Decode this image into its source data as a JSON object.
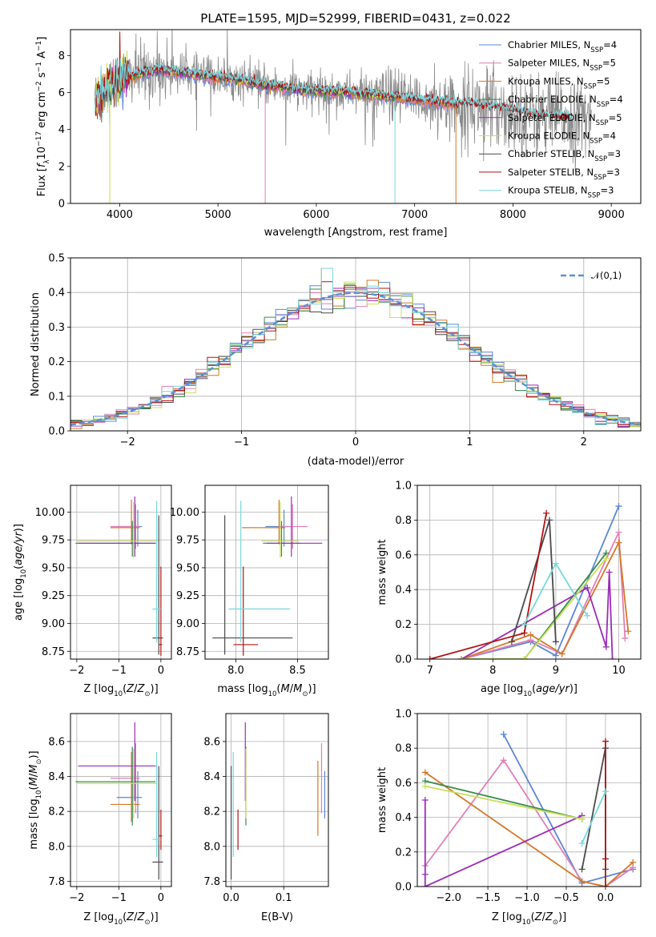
{
  "colors": {
    "Chabrier MILES": "#5b86d6",
    "Salpeter MILES": "#e17fb7",
    "Kroupa MILES": "#d4782a",
    "Chabrier ELODIE": "#3a8c4a",
    "Salpeter ELODIE": "#9a2db8",
    "Kroupa ELODIE": "#c9df5a",
    "Chabrier STELIB": "#4a4a4a",
    "Salpeter STELIB": "#b01313",
    "Kroupa STELIB": "#79d7dc",
    "data": "#8a8a8a",
    "gauss": "#5b8fd6"
  },
  "chart_data": [
    {
      "id": "spectrum",
      "type": "line",
      "title": "PLATE=1595, MJD=52999, FIBERID=0431, z=0.022",
      "xlabel": "wavelength [Angstrom, rest frame]",
      "ylabel": "Flux [f_λ 10^-17 erg cm^-2 s^-1 A^-1]",
      "xlim": [
        3500,
        9300
      ],
      "ylim": [
        0,
        9.4
      ],
      "xticks": [
        4000,
        5000,
        6000,
        7000,
        8000,
        9000
      ],
      "yticks": [
        0,
        2,
        4,
        6,
        8
      ],
      "legend_position": "upper right",
      "legend": [
        {
          "label": "Chabrier MILES, N",
          "sub": "SSP",
          "suffix": "=4",
          "series": "Chabrier MILES"
        },
        {
          "label": "Salpeter MILES, N",
          "sub": "SSP",
          "suffix": "=5",
          "series": "Salpeter MILES"
        },
        {
          "label": "Kroupa MILES, N",
          "sub": "SSP",
          "suffix": "=5",
          "series": "Kroupa MILES"
        },
        {
          "label": "Chabrier ELODIE, N",
          "sub": "SSP",
          "suffix": "=4",
          "series": "Chabrier ELODIE"
        },
        {
          "label": "Salpeter ELODIE, N",
          "sub": "SSP",
          "suffix": "=5",
          "series": "Salpeter ELODIE"
        },
        {
          "label": "Kroupa ELODIE, N",
          "sub": "SSP",
          "suffix": "=4",
          "series": "Kroupa ELODIE"
        },
        {
          "label": "Chabrier STELIB, N",
          "sub": "SSP",
          "suffix": "=3",
          "series": "Chabrier STELIB"
        },
        {
          "label": "Salpeter STELIB, N",
          "sub": "SSP",
          "suffix": "=3",
          "series": "Salpeter STELIB"
        },
        {
          "label": "Kroupa STELIB, N",
          "sub": "SSP",
          "suffix": "=3",
          "series": "Kroupa STELIB"
        }
      ],
      "continuum": [
        [
          3750,
          5.6
        ],
        [
          3900,
          6.3
        ],
        [
          4000,
          6.8
        ],
        [
          4200,
          7.0
        ],
        [
          4400,
          7.2
        ],
        [
          4600,
          7.1
        ],
        [
          4900,
          6.9
        ],
        [
          5200,
          6.7
        ],
        [
          5500,
          6.4
        ],
        [
          5900,
          6.1
        ],
        [
          6300,
          6.0
        ],
        [
          6700,
          5.8
        ],
        [
          7000,
          5.6
        ],
        [
          7400,
          5.4
        ],
        [
          7800,
          5.2
        ],
        [
          8200,
          4.8
        ],
        [
          8600,
          4.6
        ],
        [
          8800,
          4.5
        ]
      ],
      "model_range": {
        "MILES": [
          3750,
          7420
        ],
        "ELODIE": [
          3750,
          6800
        ],
        "STELIB": [
          3750,
          8600
        ]
      },
      "model_dropouts": [
        {
          "series": "Kroupa ELODIE",
          "x": 3900
        },
        {
          "series": "Salpeter MILES",
          "x": 5480
        },
        {
          "series": "Kroupa STELIB",
          "x": 6800
        },
        {
          "series": "Kroupa MILES",
          "x": 7420
        }
      ],
      "data_range": [
        3750,
        8800
      ]
    },
    {
      "id": "residuals",
      "type": "histogram",
      "xlabel": "(data-model)/error",
      "ylabel": "Normed distribution",
      "xlim": [
        -2.5,
        2.5
      ],
      "ylim": [
        0,
        0.5
      ],
      "xticks": [
        -2,
        -1,
        0,
        1,
        2
      ],
      "yticks": [
        0.0,
        0.1,
        0.2,
        0.3,
        0.4,
        0.5
      ],
      "bin_width": 0.1,
      "legend": "𝒩(0,1)",
      "legend_position": "upper right",
      "series": [
        "Chabrier MILES",
        "Salpeter MILES",
        "Kroupa MILES",
        "Chabrier ELODIE",
        "Salpeter ELODIE",
        "Kroupa ELODIE",
        "Chabrier STELIB",
        "Salpeter STELIB",
        "Kroupa STELIB"
      ],
      "peak_bin": {
        "x": -0.25,
        "value": 0.47
      }
    },
    {
      "id": "age_vs_Z",
      "type": "errorbar",
      "xlabel": "Z [log10(Z/Z⊙)]",
      "ylabel": "age [log10(age/yr)]",
      "xlim": [
        -2.15,
        0.25
      ],
      "ylim": [
        8.68,
        10.24
      ],
      "xticks": [
        -2,
        -1,
        0
      ],
      "yticks": [
        8.75,
        9.0,
        9.25,
        9.5,
        9.75,
        10.0
      ],
      "points": [
        {
          "series": "Chabrier MILES",
          "x": -0.55,
          "xerr": [
            0.5,
            0.1
          ],
          "y": 9.87,
          "yerr": [
            0.18,
            0.15
          ]
        },
        {
          "series": "Salpeter MILES",
          "x": -0.6,
          "xerr": [
            0.6,
            0.1
          ],
          "y": 9.87,
          "yerr": [
            0.2,
            0.2
          ]
        },
        {
          "series": "Kroupa MILES",
          "x": -0.7,
          "xerr": [
            0.5,
            0.2
          ],
          "y": 9.86,
          "yerr": [
            0.15,
            0.25
          ]
        },
        {
          "series": "Chabrier ELODIE",
          "x": -0.68,
          "xerr": [
            1.35,
            0.55
          ],
          "y": 9.72,
          "yerr": [
            0.12,
            0.2
          ]
        },
        {
          "series": "Salpeter ELODIE",
          "x": -0.62,
          "xerr": [
            1.35,
            0.5
          ],
          "y": 9.72,
          "yerr": [
            0.12,
            0.42
          ]
        },
        {
          "series": "Kroupa ELODIE",
          "x": -0.65,
          "xerr": [
            1.35,
            0.55
          ],
          "y": 9.74,
          "yerr": [
            0.15,
            0.35
          ]
        },
        {
          "series": "Chabrier STELIB",
          "x": -0.05,
          "xerr": [
            0.15,
            0.1
          ],
          "y": 8.87,
          "yerr": [
            0.15,
            1.1
          ]
        },
        {
          "series": "Salpeter STELIB",
          "x": 0.0,
          "xerr": [
            0.05,
            0.03
          ],
          "y": 8.81,
          "yerr": [
            0.1,
            0.7
          ]
        },
        {
          "series": "Kroupa STELIB",
          "x": -0.1,
          "xerr": [
            0.1,
            0.1
          ],
          "y": 9.13,
          "yerr": [
            0.3,
            0.97
          ]
        }
      ]
    },
    {
      "id": "age_vs_mass",
      "type": "errorbar",
      "xlabel": "mass [log10(M/M⊙)]",
      "ylabel": "",
      "xlim": [
        7.75,
        8.75
      ],
      "ylim": [
        8.68,
        10.24
      ],
      "xticks": [
        8.0,
        8.5
      ],
      "yticks": [
        8.75,
        9.0,
        9.25,
        9.5,
        9.75,
        10.0
      ],
      "points": [
        {
          "series": "Chabrier MILES",
          "x": 8.39,
          "xerr": [
            0.15,
            0.05
          ],
          "y": 9.87,
          "yerr": [
            0.18,
            0.15
          ]
        },
        {
          "series": "Salpeter MILES",
          "x": 8.46,
          "xerr": [
            0.1,
            0.12
          ],
          "y": 9.87,
          "yerr": [
            0.2,
            0.2
          ]
        },
        {
          "series": "Kroupa MILES",
          "x": 8.35,
          "xerr": [
            0.3,
            0.05
          ],
          "y": 9.86,
          "yerr": [
            0.15,
            0.25
          ]
        },
        {
          "series": "Chabrier ELODIE",
          "x": 8.37,
          "xerr": [
            0.15,
            0.15
          ],
          "y": 9.72,
          "yerr": [
            0.12,
            0.2
          ]
        },
        {
          "series": "Salpeter ELODIE",
          "x": 8.45,
          "xerr": [
            0.2,
            0.25
          ],
          "y": 9.72,
          "yerr": [
            0.12,
            0.42
          ]
        },
        {
          "series": "Kroupa ELODIE",
          "x": 8.36,
          "xerr": [
            0.15,
            0.15
          ],
          "y": 9.74,
          "yerr": [
            0.15,
            0.35
          ]
        },
        {
          "series": "Chabrier STELIB",
          "x": 7.91,
          "xerr": [
            0.1,
            0.55
          ],
          "y": 8.87,
          "yerr": [
            0.15,
            1.1
          ]
        },
        {
          "series": "Salpeter STELIB",
          "x": 8.06,
          "xerr": [
            0.08,
            0.12
          ],
          "y": 8.81,
          "yerr": [
            0.1,
            0.7
          ]
        },
        {
          "series": "Kroupa STELIB",
          "x": 8.04,
          "xerr": [
            0.1,
            0.4
          ],
          "y": 9.13,
          "yerr": [
            0.3,
            0.97
          ]
        }
      ]
    },
    {
      "id": "weight_vs_age",
      "type": "line",
      "xlabel": "age [log10(age/yr)]",
      "ylabel": "mass weight",
      "xlim": [
        6.8,
        10.35
      ],
      "ylim": [
        0,
        1
      ],
      "xticks": [
        7,
        8,
        9,
        10
      ],
      "yticks": [
        0.0,
        0.2,
        0.4,
        0.6,
        0.8,
        1.0
      ],
      "series": [
        {
          "name": "Chabrier MILES",
          "x": [
            7.5,
            8.6,
            9.0,
            10.0
          ],
          "y": [
            0.0,
            0.1,
            0.02,
            0.88
          ]
        },
        {
          "name": "Salpeter MILES",
          "x": [
            7.5,
            8.6,
            9.1,
            10.0,
            10.1
          ],
          "y": [
            0.0,
            0.11,
            0.03,
            0.73,
            0.12
          ]
        },
        {
          "name": "Kroupa MILES",
          "x": [
            7.5,
            8.6,
            9.1,
            10.0,
            10.15
          ],
          "y": [
            0.0,
            0.14,
            0.03,
            0.67,
            0.16
          ]
        },
        {
          "name": "Chabrier ELODIE",
          "x": [
            7.5,
            8.5,
            9.8
          ],
          "y": [
            0.0,
            0.0,
            0.61
          ]
        },
        {
          "name": "Salpeter ELODIE",
          "x": [
            7.5,
            9.5,
            9.8,
            9.85,
            9.9
          ],
          "y": [
            0.0,
            0.41,
            0.07,
            0.5,
            0.0
          ]
        },
        {
          "name": "Kroupa ELODIE",
          "x": [
            7.5,
            8.5,
            9.8
          ],
          "y": [
            0.0,
            0.0,
            0.58
          ]
        },
        {
          "name": "Chabrier STELIB",
          "x": [
            8.3,
            8.9,
            9.0
          ],
          "y": [
            0.1,
            0.8,
            0.1
          ]
        },
        {
          "name": "Salpeter STELIB",
          "x": [
            7.0,
            8.5,
            8.85
          ],
          "y": [
            0.0,
            0.15,
            0.84
          ]
        },
        {
          "name": "Kroupa STELIB",
          "x": [
            8.5,
            9.0,
            9.5
          ],
          "y": [
            0.2,
            0.55,
            0.25
          ]
        }
      ]
    },
    {
      "id": "mass_vs_Z",
      "type": "errorbar",
      "xlabel": "Z [log10(Z/Z⊙)]",
      "ylabel": "mass [log10(M/M⊙)]",
      "xlim": [
        -2.15,
        0.25
      ],
      "ylim": [
        7.77,
        8.76
      ],
      "xticks": [
        -2,
        -1,
        0
      ],
      "yticks": [
        7.8,
        8.0,
        8.2,
        8.4,
        8.6
      ],
      "points": [
        {
          "series": "Chabrier MILES",
          "x": -0.55,
          "xerr": [
            0.5,
            0.1
          ],
          "y": 8.28,
          "yerr": [
            0.12,
            0.15
          ]
        },
        {
          "series": "Salpeter MILES",
          "x": -0.6,
          "xerr": [
            0.6,
            0.1
          ],
          "y": 8.39,
          "yerr": [
            0.2,
            0.2
          ]
        },
        {
          "series": "Kroupa MILES",
          "x": -0.7,
          "xerr": [
            0.5,
            0.2
          ],
          "y": 8.24,
          "yerr": [
            0.1,
            0.3
          ]
        },
        {
          "series": "Chabrier ELODIE",
          "x": -0.68,
          "xerr": [
            1.35,
            0.55
          ],
          "y": 8.37,
          "yerr": [
            0.25,
            0.2
          ]
        },
        {
          "series": "Salpeter ELODIE",
          "x": -0.62,
          "xerr": [
            1.35,
            0.5
          ],
          "y": 8.46,
          "yerr": [
            0.2,
            0.25
          ]
        },
        {
          "series": "Kroupa ELODIE",
          "x": -0.65,
          "xerr": [
            1.35,
            0.55
          ],
          "y": 8.36,
          "yerr": [
            0.2,
            0.2
          ]
        },
        {
          "series": "Chabrier STELIB",
          "x": -0.05,
          "xerr": [
            0.15,
            0.1
          ],
          "y": 7.91,
          "yerr": [
            0.1,
            0.55
          ]
        },
        {
          "series": "Salpeter STELIB",
          "x": 0.0,
          "xerr": [
            0.05,
            0.03
          ],
          "y": 8.06,
          "yerr": [
            0.08,
            0.15
          ]
        },
        {
          "series": "Kroupa STELIB",
          "x": -0.1,
          "xerr": [
            0.1,
            0.1
          ],
          "y": 8.04,
          "yerr": [
            0.1,
            0.5
          ]
        }
      ]
    },
    {
      "id": "mass_vs_ebv",
      "type": "errorbar",
      "xlabel": "E(B-V)",
      "ylabel": "",
      "xlim": [
        -0.01,
        0.185
      ],
      "ylim": [
        7.77,
        8.76
      ],
      "xticks": [
        0.0,
        0.1
      ],
      "yticks": [
        7.8,
        8.0,
        8.2,
        8.4,
        8.6
      ],
      "points": [
        {
          "series": "Chabrier MILES",
          "x": 0.178,
          "y": 8.28,
          "yerr": [
            0.12,
            0.15
          ]
        },
        {
          "series": "Salpeter MILES",
          "x": 0.172,
          "y": 8.39,
          "yerr": [
            0.2,
            0.2
          ]
        },
        {
          "series": "Kroupa MILES",
          "x": 0.165,
          "y": 8.24,
          "yerr": [
            0.18,
            0.25
          ]
        },
        {
          "series": "Chabrier ELODIE",
          "x": 0.028,
          "y": 8.37,
          "yerr": [
            0.25,
            0.2
          ]
        },
        {
          "series": "Salpeter ELODIE",
          "x": 0.027,
          "y": 8.46,
          "yerr": [
            0.2,
            0.25
          ]
        },
        {
          "series": "Kroupa ELODIE",
          "x": 0.028,
          "y": 8.36,
          "yerr": [
            0.2,
            0.2
          ]
        },
        {
          "series": "Chabrier STELIB",
          "x": 0.0,
          "y": 7.91,
          "yerr": [
            0.1,
            0.55
          ]
        },
        {
          "series": "Salpeter STELIB",
          "x": 0.013,
          "y": 8.06,
          "yerr": [
            0.08,
            0.15
          ]
        },
        {
          "series": "Kroupa STELIB",
          "x": 0.004,
          "y": 8.04,
          "yerr": [
            0.1,
            0.5
          ]
        }
      ]
    },
    {
      "id": "weight_vs_Z",
      "type": "line",
      "xlabel": "Z [log10(Z/Z⊙)]",
      "ylabel": "mass weight",
      "xlim": [
        -2.4,
        0.45
      ],
      "ylim": [
        0,
        1
      ],
      "xticks": [
        -2.0,
        -1.5,
        -1.0,
        -0.5,
        0.0
      ],
      "yticks": [
        0.0,
        0.2,
        0.4,
        0.6,
        0.8,
        1.0
      ],
      "series": [
        {
          "name": "Chabrier MILES",
          "x": [
            -1.3,
            -0.3,
            0.35
          ],
          "y": [
            0.88,
            0.02,
            0.1
          ]
        },
        {
          "name": "Salpeter MILES",
          "x": [
            -2.3,
            -1.3,
            -0.3,
            0.0,
            0.35
          ],
          "y": [
            0.12,
            0.73,
            0.03,
            0.0,
            0.11
          ]
        },
        {
          "name": "Kroupa MILES",
          "x": [
            -2.3,
            -0.3,
            0.0,
            0.35
          ],
          "y": [
            0.66,
            0.03,
            0.0,
            0.14
          ]
        },
        {
          "name": "Chabrier ELODIE",
          "x": [
            -2.3,
            -0.3
          ],
          "y": [
            0.61,
            0.39
          ]
        },
        {
          "name": "Salpeter ELODIE",
          "x": [
            -2.3,
            -2.3,
            -2.3,
            -0.3
          ],
          "y": [
            0.5,
            0.07,
            0.0,
            0.41
          ]
        },
        {
          "name": "Kroupa ELODIE",
          "x": [
            -2.3,
            -0.3
          ],
          "y": [
            0.58,
            0.39
          ]
        },
        {
          "name": "Chabrier STELIB",
          "x": [
            -0.3,
            0.0,
            0.0
          ],
          "y": [
            0.1,
            0.8,
            0.1
          ]
        },
        {
          "name": "Salpeter STELIB",
          "x": [
            0.0,
            0.0,
            0.0
          ],
          "y": [
            0.0,
            0.16,
            0.84
          ]
        },
        {
          "name": "Kroupa STELIB",
          "x": [
            -0.3,
            0.0
          ],
          "y": [
            0.25,
            0.55
          ]
        }
      ]
    }
  ]
}
